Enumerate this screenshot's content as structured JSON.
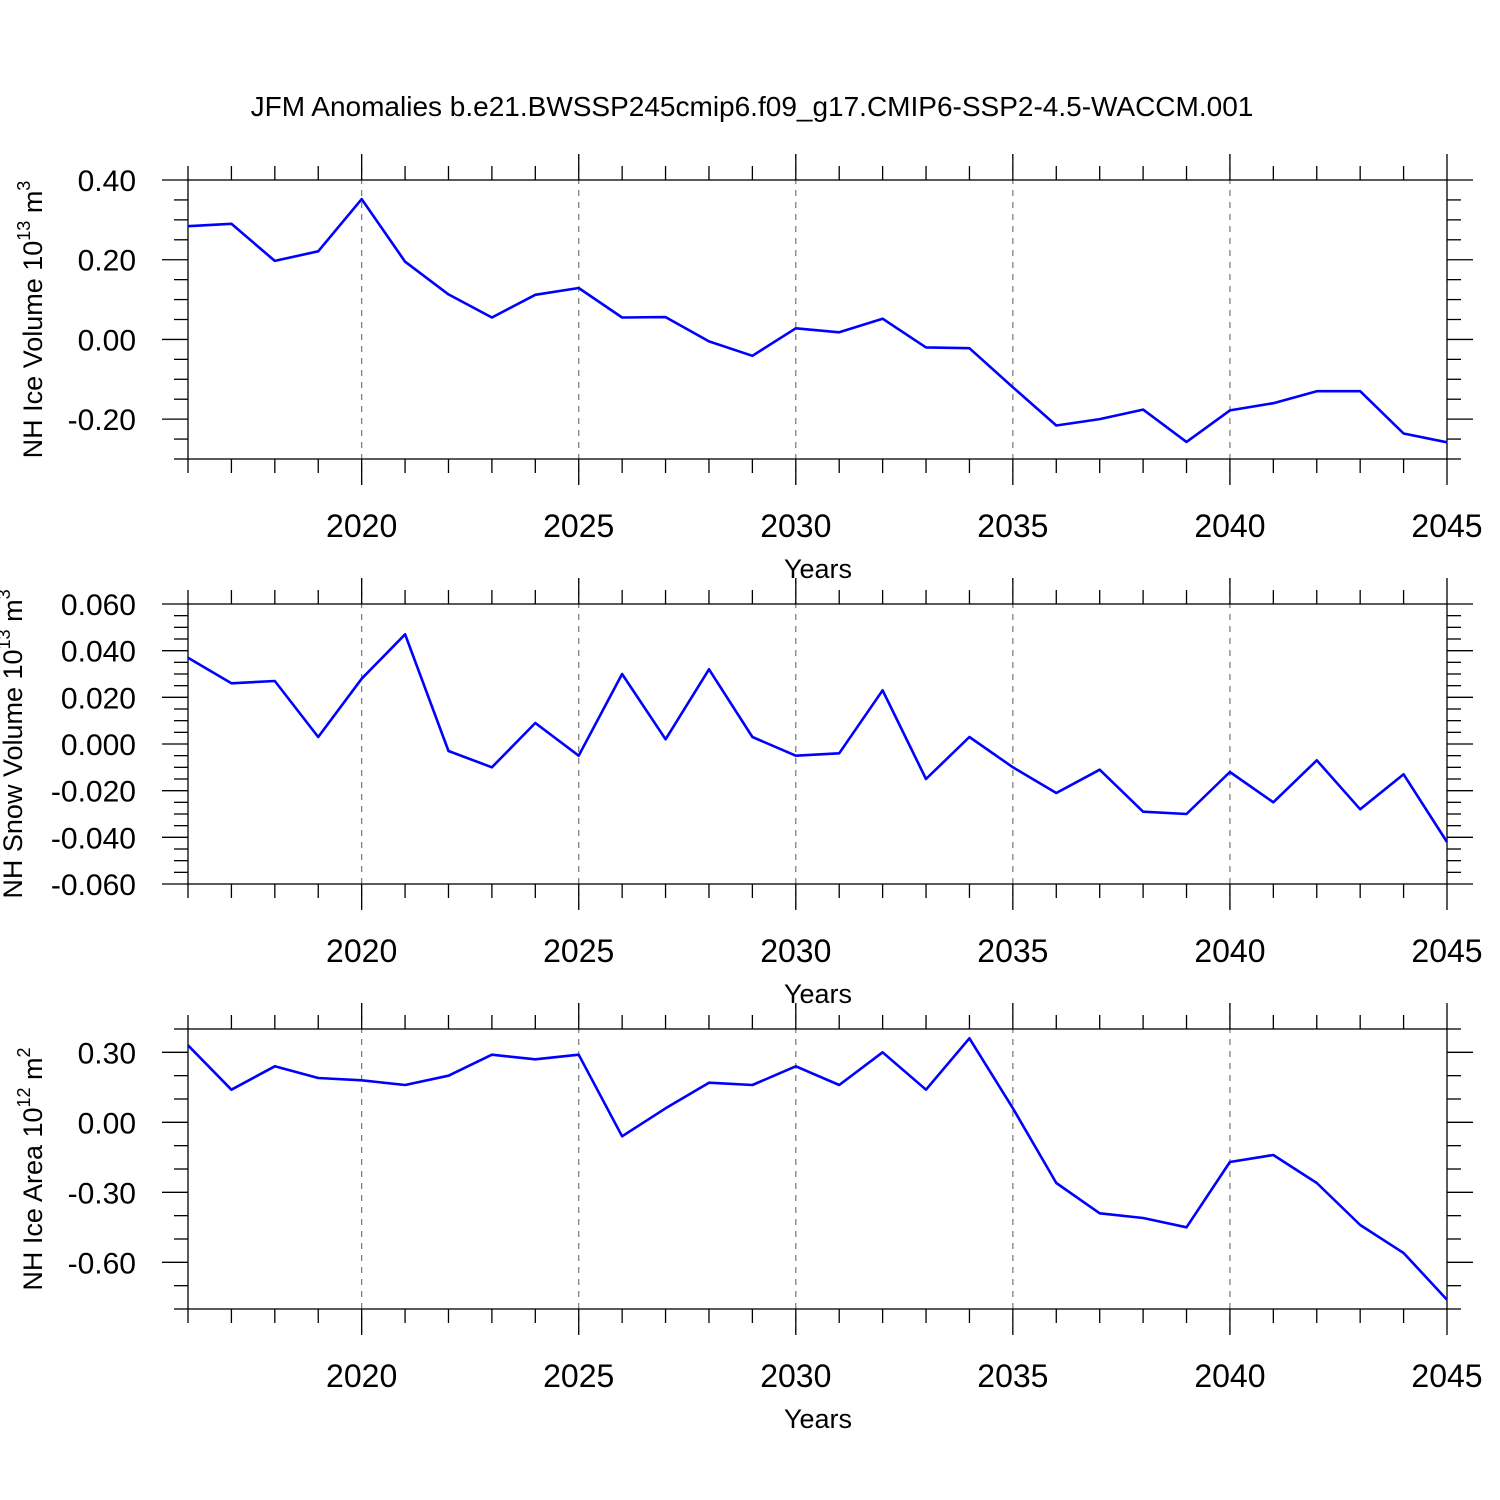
{
  "title": "JFM Anomalies b.e21.BWSSP245cmip6.f09_g17.CMIP6-SSP2-4.5-WACCM.001",
  "colors": {
    "series": "#0000ff",
    "axis": "#000000",
    "grid": "#777777"
  },
  "chart_data": [
    {
      "type": "line",
      "name": "ice-volume",
      "ylabel": {
        "text": "NH Ice Volume 10",
        "exp1": "13",
        "mid": " m",
        "exp2": "3"
      },
      "xlabel": "Years",
      "xlim": [
        2016,
        2045
      ],
      "ylim": [
        -0.3,
        0.4
      ],
      "yticks": [
        -0.2,
        0.0,
        0.2,
        0.4
      ],
      "ytick_labels": [
        "-0.20",
        "0.00",
        "0.20",
        "0.40"
      ],
      "yminor_step": 0.05,
      "xticks": [
        2020,
        2025,
        2030,
        2035,
        2040,
        2045
      ],
      "xtick_labels": [
        "2020",
        "2025",
        "2030",
        "2035",
        "2040",
        "2045"
      ],
      "grid": "vertical-dashed",
      "x": [
        2016,
        2017,
        2018,
        2019,
        2020,
        2021,
        2022,
        2023,
        2024,
        2025,
        2026,
        2027,
        2028,
        2029,
        2030,
        2031,
        2032,
        2033,
        2034,
        2035,
        2036,
        2037,
        2038,
        2039,
        2040,
        2041,
        2042,
        2043,
        2044,
        2045
      ],
      "y": [
        0.284,
        0.29,
        0.197,
        0.221,
        0.352,
        0.195,
        0.113,
        0.055,
        0.112,
        0.129,
        0.055,
        0.056,
        -0.005,
        -0.041,
        0.028,
        0.018,
        0.052,
        -0.02,
        -0.022,
        -0.12,
        -0.216,
        -0.2,
        -0.176,
        -0.257,
        -0.178,
        -0.16,
        -0.13,
        -0.13,
        -0.236,
        -0.258
      ]
    },
    {
      "type": "line",
      "name": "snow-volume",
      "ylabel": {
        "text": "NH Snow Volume 10",
        "exp1": "13",
        "mid": " m",
        "exp2": "3"
      },
      "xlabel": "Years",
      "xlim": [
        2016,
        2045
      ],
      "ylim": [
        -0.06,
        0.06
      ],
      "yticks": [
        -0.06,
        -0.04,
        -0.02,
        0.0,
        0.02,
        0.04,
        0.06
      ],
      "ytick_labels": [
        "-0.060",
        "-0.040",
        "-0.020",
        "0.000",
        "0.020",
        "0.040",
        "0.060"
      ],
      "yminor_step": 0.005,
      "xticks": [
        2020,
        2025,
        2030,
        2035,
        2040,
        2045
      ],
      "xtick_labels": [
        "2020",
        "2025",
        "2030",
        "2035",
        "2040",
        "2045"
      ],
      "grid": "vertical-dashed",
      "x": [
        2016,
        2017,
        2018,
        2019,
        2020,
        2021,
        2022,
        2023,
        2024,
        2025,
        2026,
        2027,
        2028,
        2029,
        2030,
        2031,
        2032,
        2033,
        2034,
        2035,
        2036,
        2037,
        2038,
        2039,
        2040,
        2041,
        2042,
        2043,
        2044,
        2045
      ],
      "y": [
        0.037,
        0.026,
        0.027,
        0.003,
        0.028,
        0.047,
        -0.003,
        -0.01,
        0.009,
        -0.005,
        0.03,
        0.002,
        0.032,
        0.003,
        -0.005,
        -0.004,
        0.023,
        -0.015,
        0.003,
        -0.01,
        -0.021,
        -0.011,
        -0.029,
        -0.03,
        -0.012,
        -0.025,
        -0.007,
        -0.028,
        -0.013,
        -0.042
      ]
    },
    {
      "type": "line",
      "name": "ice-area",
      "ylabel": {
        "text": "NH Ice Area 10",
        "exp1": "12",
        "mid": " m",
        "exp2": "2"
      },
      "xlabel": "Years",
      "xlim": [
        2016,
        2045
      ],
      "ylim": [
        -0.8,
        0.4
      ],
      "yticks": [
        -0.6,
        -0.3,
        0.0,
        0.3
      ],
      "ytick_labels": [
        "-0.60",
        "-0.30",
        "0.00",
        "0.30"
      ],
      "yminor_step": 0.1,
      "xticks": [
        2020,
        2025,
        2030,
        2035,
        2040,
        2045
      ],
      "xtick_labels": [
        "2020",
        "2025",
        "2030",
        "2035",
        "2040",
        "2045"
      ],
      "grid": "vertical-dashed",
      "x": [
        2016,
        2017,
        2018,
        2019,
        2020,
        2021,
        2022,
        2023,
        2024,
        2025,
        2026,
        2027,
        2028,
        2029,
        2030,
        2031,
        2032,
        2033,
        2034,
        2035,
        2036,
        2037,
        2038,
        2039,
        2040,
        2041,
        2042,
        2043,
        2044,
        2045
      ],
      "y": [
        0.33,
        0.14,
        0.24,
        0.19,
        0.18,
        0.16,
        0.2,
        0.29,
        0.27,
        0.29,
        -0.06,
        0.06,
        0.17,
        0.16,
        0.24,
        0.16,
        0.3,
        0.14,
        0.36,
        0.06,
        -0.26,
        -0.39,
        -0.41,
        -0.45,
        -0.17,
        -0.14,
        -0.26,
        -0.44,
        -0.56,
        -0.76
      ]
    }
  ]
}
